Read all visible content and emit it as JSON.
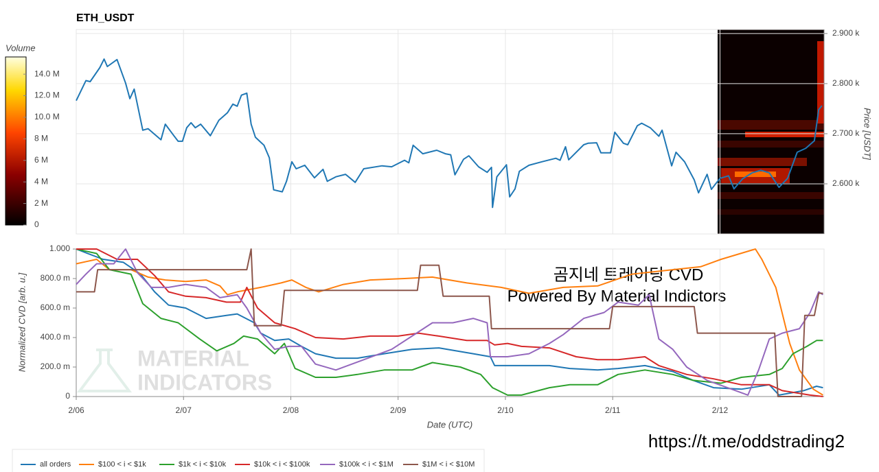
{
  "chart_data": [
    {
      "type": "line",
      "title": "ETH_USDT",
      "y2label": "Price [USDT]",
      "xlim": [
        0,
        6.97
      ],
      "y2lim": [
        2500,
        2908
      ],
      "y2ticks": [
        {
          "value": 2600,
          "label": "2.600 k"
        },
        {
          "value": 2700,
          "label": "2.700 k"
        },
        {
          "value": 2800,
          "label": "2.800 k"
        },
        {
          "value": 2900,
          "label": "2.900 k"
        }
      ],
      "grid": true,
      "series": [
        {
          "name": "ETH_USDT",
          "color": "#1f77b4",
          "axis": "y2",
          "x": [
            0,
            0.09,
            0.13,
            0.22,
            0.26,
            0.29,
            0.38,
            0.46,
            0.5,
            0.54,
            0.62,
            0.67,
            0.79,
            0.83,
            0.91,
            0.95,
            0.99,
            1.03,
            1.07,
            1.11,
            1.16,
            1.25,
            1.33,
            1.41,
            1.46,
            1.5,
            1.54,
            1.59,
            1.63,
            1.67,
            1.75,
            1.8,
            1.84,
            1.92,
            1.96,
            2.01,
            2.05,
            2.13,
            2.22,
            2.3,
            2.34,
            2.42,
            2.51,
            2.6,
            2.68,
            2.85,
            2.94,
            3.06,
            3.1,
            3.14,
            3.23,
            3.36,
            3.44,
            3.49,
            3.53,
            3.61,
            3.66,
            3.75,
            3.83,
            3.87,
            3.88,
            3.92,
            4.01,
            4.04,
            4.09,
            4.13,
            4.22,
            4.34,
            4.47,
            4.51,
            4.56,
            4.59,
            4.73,
            4.77,
            4.85,
            4.89,
            4.98,
            5.02,
            5.1,
            5.14,
            5.23,
            5.27,
            5.35,
            5.43,
            5.46,
            5.55,
            5.59,
            5.67,
            5.76,
            5.8,
            5.88,
            5.92,
            6.0,
            6.08,
            6.13,
            6.21,
            6.3,
            6.38,
            6.46,
            6.55,
            6.63,
            6.72,
            6.8,
            6.88,
            6.92,
            6.95
          ],
          "values": [
            2766,
            2806,
            2804,
            2832,
            2849,
            2834,
            2848,
            2801,
            2770,
            2789,
            2707,
            2710,
            2688,
            2719,
            2696,
            2685,
            2685,
            2712,
            2722,
            2712,
            2719,
            2696,
            2727,
            2742,
            2759,
            2755,
            2777,
            2781,
            2719,
            2693,
            2677,
            2652,
            2588,
            2584,
            2605,
            2644,
            2630,
            2637,
            2612,
            2629,
            2605,
            2614,
            2619,
            2603,
            2630,
            2636,
            2634,
            2647,
            2642,
            2677,
            2660,
            2667,
            2660,
            2658,
            2618,
            2649,
            2656,
            2634,
            2623,
            2633,
            2553,
            2614,
            2638,
            2574,
            2590,
            2625,
            2637,
            2644,
            2651,
            2647,
            2674,
            2648,
            2678,
            2681,
            2682,
            2662,
            2662,
            2703,
            2681,
            2678,
            2716,
            2721,
            2712,
            2695,
            2707,
            2636,
            2663,
            2644,
            2608,
            2582,
            2619,
            2589,
            2611,
            2616,
            2590,
            2610,
            2622,
            2627,
            2622,
            2593,
            2611,
            2663,
            2671,
            2686,
            2748,
            2756
          ]
        }
      ],
      "colorbar": {
        "title": "Volume",
        "lim": [
          0,
          15600000
        ],
        "ticks": [
          0,
          {
            "value": 2000000,
            "label": "2 M"
          },
          {
            "value": 4000000,
            "label": "4 M"
          },
          {
            "value": 6000000,
            "label": "6 M"
          },
          {
            "value": 8000000,
            "label": "8 M"
          },
          {
            "value": 10000000,
            "label": "10.0 M"
          },
          {
            "value": 12000000,
            "label": "12.0 M"
          },
          {
            "value": 14000000,
            "label": "14.0 M"
          }
        ]
      }
    },
    {
      "type": "line",
      "xlabel": "Date (UTC)",
      "ylabel": "Normalized CVD [arb. u.]",
      "xlim": [
        0,
        6.97
      ],
      "ylim": [
        0,
        1.0
      ],
      "xticks": [
        {
          "value": 0,
          "label": "2/06"
        },
        {
          "value": 1,
          "label": "2/07"
        },
        {
          "value": 2,
          "label": "2/08"
        },
        {
          "value": 3,
          "label": "2/09"
        },
        {
          "value": 4,
          "label": "2/10"
        },
        {
          "value": 5,
          "label": "2/11"
        },
        {
          "value": 6,
          "label": "2/12"
        }
      ],
      "yticks": [
        0,
        {
          "value": 0.2,
          "label": "200.0 m"
        },
        {
          "value": 0.4,
          "label": "400.0 m"
        },
        {
          "value": 0.6,
          "label": "600.0 m"
        },
        {
          "value": 0.8,
          "label": "800.0 m"
        },
        {
          "value": 1.0,
          "label": "1.000"
        }
      ],
      "grid": true,
      "legend": "bottom-left",
      "annotations": [
        "곰지네 트레이딩 CVD",
        "Powered By Material Indictors"
      ],
      "watermark": [
        "MATERIAL",
        "INDICATORS"
      ],
      "footer": "https://t.me/oddstrading2",
      "series": [
        {
          "name": "all orders",
          "color": "#1f77b4",
          "x": [
            0,
            0.25,
            0.44,
            0.6,
            0.73,
            0.86,
            1.02,
            1.21,
            1.4,
            1.5,
            1.66,
            1.72,
            1.85,
            1.98,
            2.1,
            2.23,
            2.42,
            2.62,
            2.87,
            3.13,
            3.38,
            3.7,
            3.86,
            3.9,
            4.02,
            4.15,
            4.41,
            4.6,
            4.86,
            5.05,
            5.3,
            5.56,
            5.75,
            5.94,
            6.2,
            6.46,
            6.55,
            6.78,
            6.9,
            6.96
          ],
          "values": [
            1.0,
            0.93,
            0.91,
            0.83,
            0.71,
            0.62,
            0.6,
            0.53,
            0.55,
            0.56,
            0.5,
            0.43,
            0.38,
            0.39,
            0.34,
            0.29,
            0.26,
            0.26,
            0.29,
            0.32,
            0.33,
            0.29,
            0.27,
            0.21,
            0.21,
            0.21,
            0.21,
            0.19,
            0.18,
            0.19,
            0.21,
            0.17,
            0.11,
            0.06,
            0.05,
            0.08,
            0.01,
            0.04,
            0.07,
            0.06
          ]
        },
        {
          "name": "$100 < i < $1k",
          "color": "#ff7f0e",
          "x": [
            0,
            0.19,
            0.31,
            0.51,
            0.67,
            0.83,
            1.02,
            1.21,
            1.34,
            1.41,
            1.5,
            1.72,
            1.91,
            2.01,
            2.14,
            2.26,
            2.49,
            2.74,
            3.06,
            3.32,
            3.64,
            3.96,
            4.22,
            4.54,
            4.86,
            5.18,
            5.56,
            5.82,
            6.01,
            6.33,
            6.39,
            6.52,
            6.65,
            6.74,
            6.87,
            6.96
          ],
          "values": [
            0.9,
            0.93,
            0.86,
            0.86,
            0.81,
            0.79,
            0.78,
            0.79,
            0.75,
            0.69,
            0.71,
            0.74,
            0.77,
            0.79,
            0.74,
            0.71,
            0.76,
            0.79,
            0.8,
            0.81,
            0.77,
            0.74,
            0.7,
            0.74,
            0.75,
            0.83,
            0.86,
            0.88,
            0.93,
            1.0,
            0.93,
            0.74,
            0.36,
            0.18,
            0.05,
            0.01
          ]
        },
        {
          "name": "$1k < i < $10k",
          "color": "#2ca02c",
          "x": [
            0,
            0.19,
            0.31,
            0.51,
            0.62,
            0.79,
            0.95,
            1.15,
            1.31,
            1.47,
            1.56,
            1.69,
            1.85,
            1.94,
            2.04,
            2.23,
            2.42,
            2.62,
            2.87,
            3.13,
            3.32,
            3.58,
            3.77,
            3.88,
            4.02,
            4.15,
            4.41,
            4.6,
            4.86,
            5.05,
            5.3,
            5.56,
            5.75,
            6.01,
            6.2,
            6.46,
            6.58,
            6.68,
            6.81,
            6.9,
            6.96
          ],
          "values": [
            1.0,
            0.97,
            0.86,
            0.83,
            0.63,
            0.53,
            0.5,
            0.39,
            0.31,
            0.36,
            0.41,
            0.39,
            0.29,
            0.36,
            0.19,
            0.13,
            0.13,
            0.15,
            0.18,
            0.18,
            0.23,
            0.2,
            0.15,
            0.06,
            0.01,
            0.01,
            0.06,
            0.08,
            0.08,
            0.15,
            0.18,
            0.15,
            0.11,
            0.09,
            0.13,
            0.15,
            0.19,
            0.29,
            0.34,
            0.38,
            0.38
          ]
        },
        {
          "name": "$10k < i < $100k",
          "color": "#d62728",
          "x": [
            0,
            0.19,
            0.38,
            0.57,
            0.73,
            0.86,
            1.02,
            1.21,
            1.4,
            1.53,
            1.59,
            1.69,
            1.85,
            2.04,
            2.23,
            2.49,
            2.74,
            3.0,
            3.19,
            3.38,
            3.64,
            3.83,
            3.9,
            4.02,
            4.15,
            4.41,
            4.66,
            4.86,
            5.05,
            5.3,
            5.43,
            5.69,
            5.94,
            6.2,
            6.46,
            6.58,
            6.84,
            6.96
          ],
          "values": [
            1.0,
            1.0,
            0.93,
            0.93,
            0.82,
            0.71,
            0.68,
            0.67,
            0.64,
            0.64,
            0.74,
            0.6,
            0.5,
            0.46,
            0.4,
            0.39,
            0.41,
            0.41,
            0.43,
            0.41,
            0.38,
            0.38,
            0.35,
            0.36,
            0.34,
            0.33,
            0.27,
            0.25,
            0.25,
            0.27,
            0.21,
            0.15,
            0.12,
            0.08,
            0.08,
            0.04,
            0.01,
            0.0
          ]
        },
        {
          "name": "$100k < i < $1M",
          "color": "#9467bd",
          "x": [
            0,
            0.09,
            0.19,
            0.35,
            0.46,
            0.57,
            0.7,
            0.86,
            1.02,
            1.21,
            1.34,
            1.5,
            1.59,
            1.72,
            1.85,
            1.98,
            2.1,
            2.23,
            2.42,
            2.68,
            2.94,
            3.13,
            3.32,
            3.51,
            3.7,
            3.83,
            3.86,
            4.02,
            4.22,
            4.41,
            4.54,
            4.73,
            4.92,
            5.05,
            5.24,
            5.34,
            5.43,
            5.56,
            5.69,
            5.88,
            6.07,
            6.26,
            6.36,
            6.46,
            6.58,
            6.74,
            6.84,
            6.92,
            6.96
          ],
          "values": [
            0.76,
            0.83,
            0.9,
            0.9,
            1.0,
            0.84,
            0.74,
            0.74,
            0.76,
            0.74,
            0.67,
            0.69,
            0.6,
            0.43,
            0.32,
            0.34,
            0.34,
            0.22,
            0.18,
            0.25,
            0.32,
            0.41,
            0.5,
            0.5,
            0.53,
            0.5,
            0.27,
            0.27,
            0.29,
            0.36,
            0.42,
            0.53,
            0.57,
            0.64,
            0.62,
            0.69,
            0.39,
            0.32,
            0.2,
            0.11,
            0.06,
            0.01,
            0.18,
            0.39,
            0.43,
            0.46,
            0.57,
            0.71,
            0.69
          ]
        },
        {
          "name": "$1M < i < $10M",
          "color": "#8c564b",
          "x": [
            0,
            0.17,
            0.2,
            1.59,
            1.63,
            1.66,
            1.91,
            1.94,
            3.18,
            3.21,
            3.38,
            3.42,
            3.85,
            3.87,
            4.97,
            5.0,
            5.76,
            5.79,
            6.51,
            6.54,
            6.76,
            6.79,
            6.88,
            6.92,
            6.96
          ],
          "values": [
            0.71,
            0.71,
            0.86,
            0.86,
            1.0,
            0.48,
            0.48,
            0.72,
            0.72,
            0.89,
            0.89,
            0.68,
            0.68,
            0.46,
            0.46,
            0.61,
            0.61,
            0.43,
            0.43,
            0.0,
            0.0,
            0.55,
            0.55,
            0.7,
            0.7
          ]
        }
      ]
    }
  ]
}
